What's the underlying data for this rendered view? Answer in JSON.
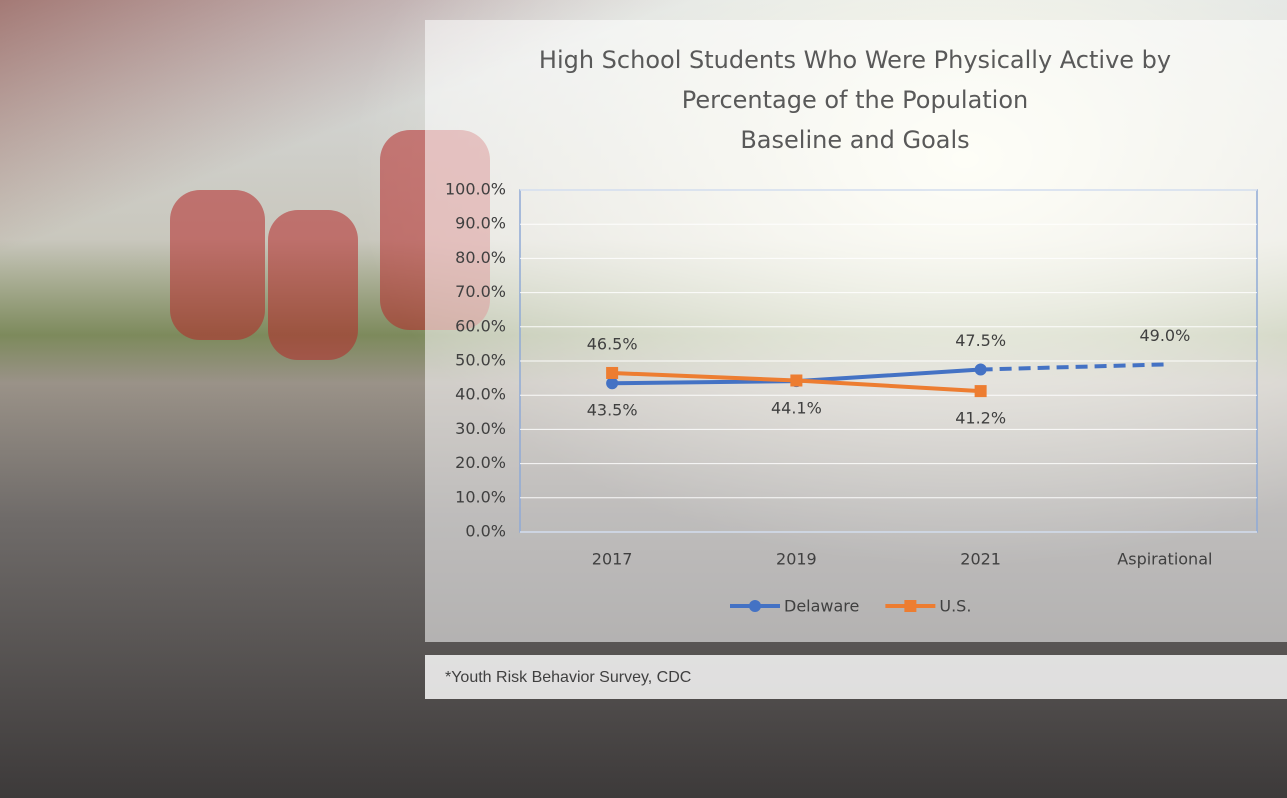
{
  "chart_data": {
    "type": "line",
    "title": "High School Students Who Were Physically Active by Percentage of the Population",
    "subtitle": "Baseline and Goals",
    "categories": [
      "2017",
      "2019",
      "2021",
      "Aspirational"
    ],
    "series": [
      {
        "name": "Delaware",
        "color": "#4472c4",
        "marker": "circle",
        "values": [
          43.5,
          44.1,
          47.5,
          49.0
        ],
        "value_labels": [
          "43.5%",
          "44.1%",
          "47.5%",
          "49.0%"
        ],
        "dashed_segments": [
          2
        ]
      },
      {
        "name": "U.S.",
        "color": "#ed7d31",
        "marker": "square",
        "values": [
          46.5,
          44.3,
          41.2,
          null
        ],
        "value_labels": [
          "46.5%",
          null,
          "41.2%",
          null
        ],
        "dashed_segments": []
      }
    ],
    "ylim": [
      0,
      100
    ],
    "yticks": [
      {
        "value": 0,
        "label": "0.0%"
      },
      {
        "value": 10,
        "label": "10.0%"
      },
      {
        "value": 20,
        "label": "20.0%"
      },
      {
        "value": 30,
        "label": "30.0%"
      },
      {
        "value": 40,
        "label": "40.0%"
      },
      {
        "value": 50,
        "label": "50.0%"
      },
      {
        "value": 60,
        "label": "60.0%"
      },
      {
        "value": 70,
        "label": "70.0%"
      },
      {
        "value": 80,
        "label": "80.0%"
      },
      {
        "value": 90,
        "label": "90.0%"
      },
      {
        "value": 100,
        "label": "100.0%"
      }
    ],
    "grid": true,
    "legend": "bottom",
    "source": "*Youth Risk Behavior Survey, CDC"
  }
}
